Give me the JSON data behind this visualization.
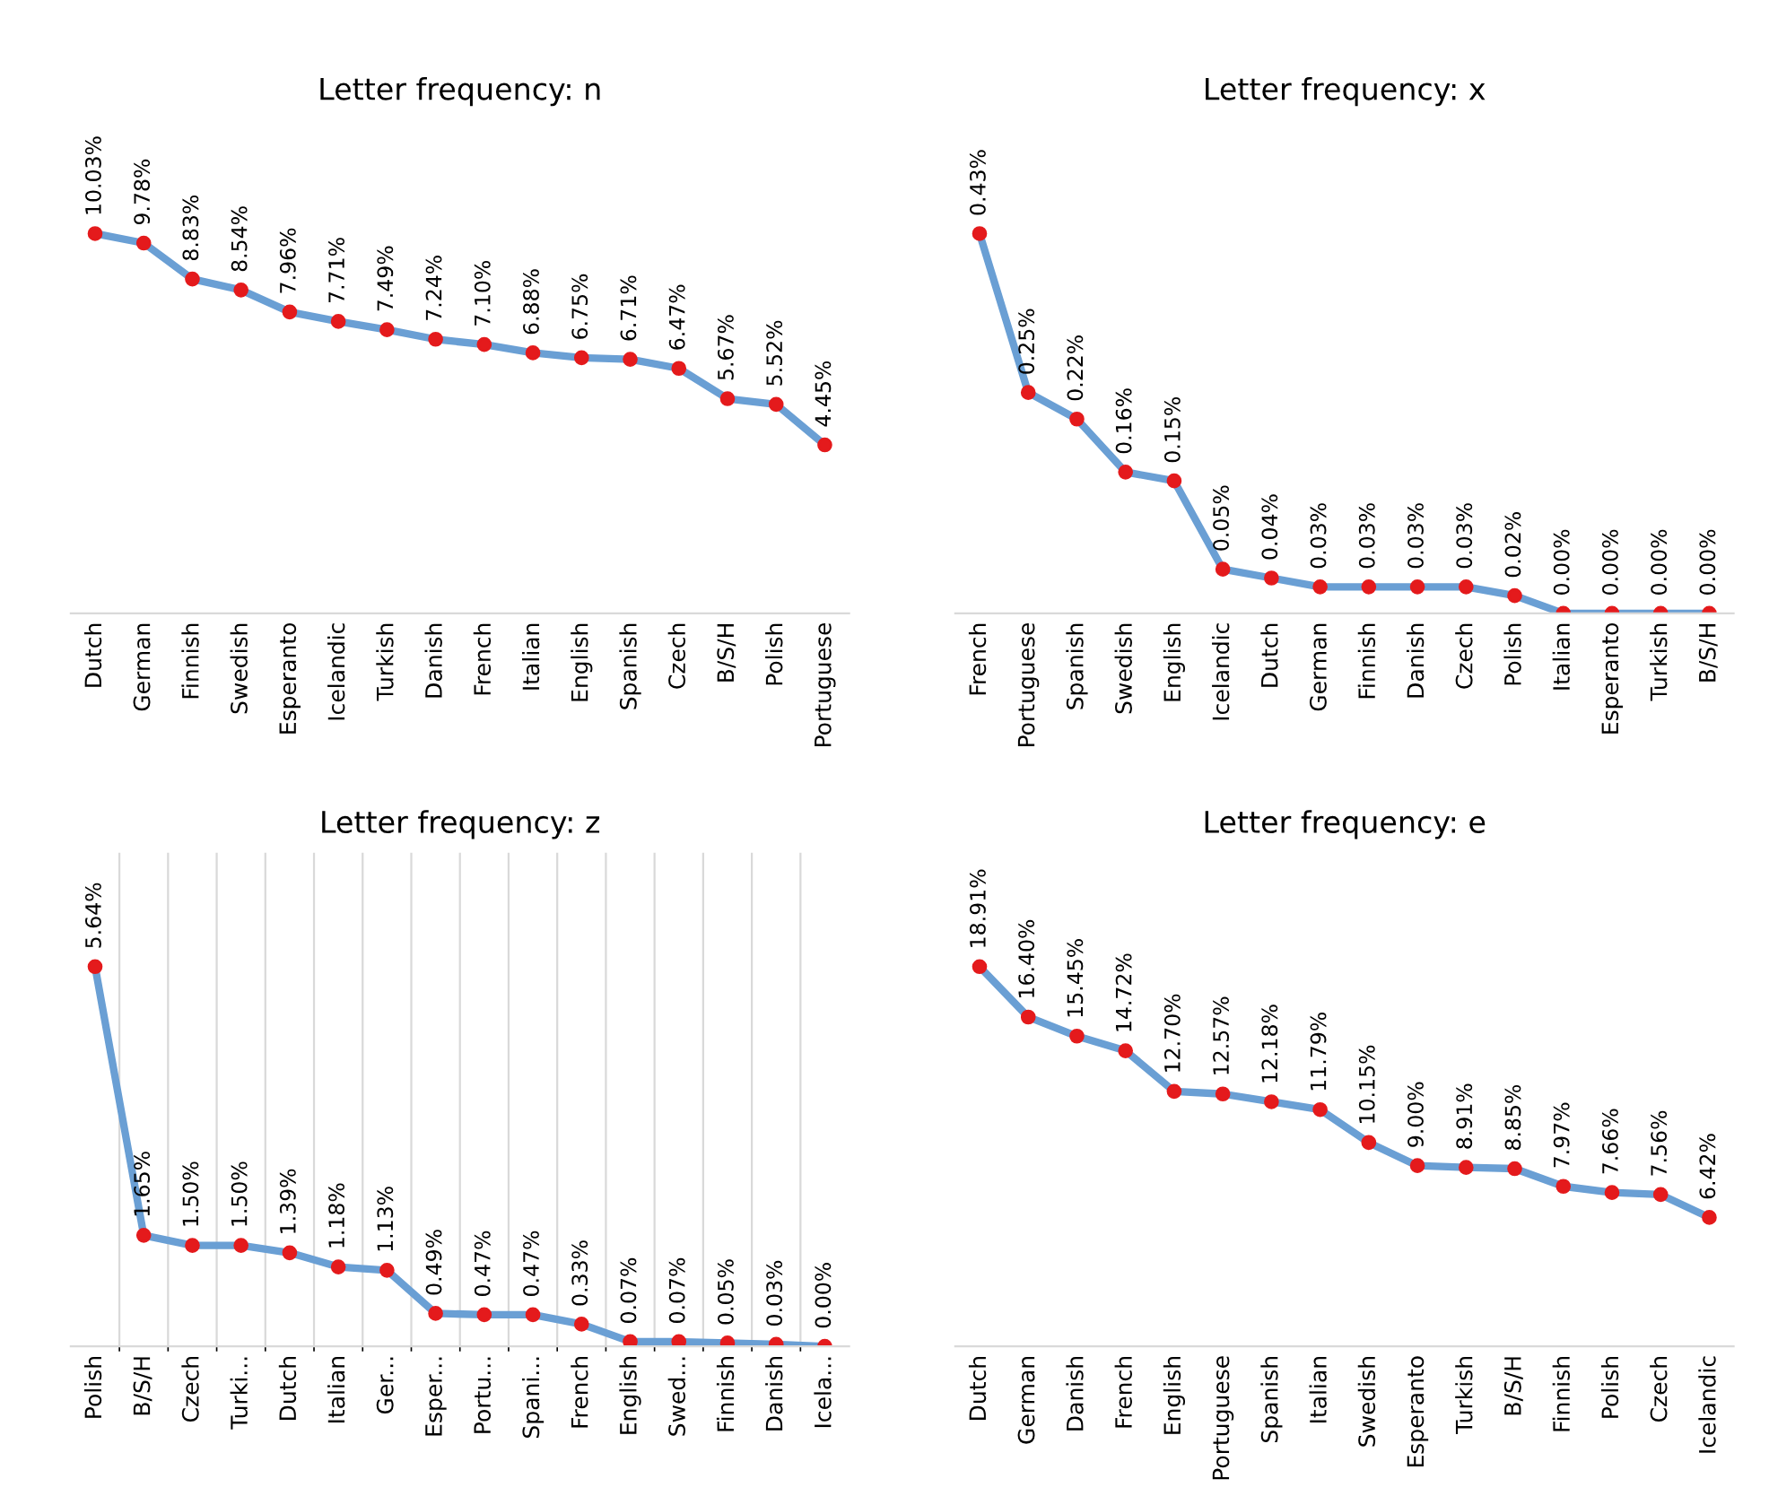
{
  "chart_data": [
    {
      "type": "line",
      "title": "Letter frequency: n",
      "categories": [
        "Dutch",
        "German",
        "Finnish",
        "Swedish",
        "Esperanto",
        "Icelandic",
        "Turkish",
        "Danish",
        "French",
        "Italian",
        "English",
        "Spanish",
        "Czech",
        "B/S/H",
        "Polish",
        "Portuguese"
      ],
      "series": [
        {
          "color": "#6a9fd4",
          "values": [
            10.03,
            9.78,
            8.83,
            8.54,
            7.96,
            7.71,
            7.49,
            7.24,
            7.1,
            6.88,
            6.75,
            6.71,
            6.47,
            5.67,
            5.52,
            4.45
          ],
          "value_labels": [
            "10.03%",
            "9.78%",
            "8.83%",
            "8.54%",
            "7.96%",
            "7.71%",
            "7.49%",
            "7.24%",
            "7.10%",
            "6.88%",
            "6.75%",
            "6.71%",
            "6.47%",
            "5.67%",
            "5.52%",
            "4.45%"
          ]
        }
      ],
      "marker": "circle",
      "grid": false,
      "tick_labels": "x"
    },
    {
      "type": "line",
      "title": "Letter frequency: x",
      "categories": [
        "French",
        "Portuguese",
        "Spanish",
        "Swedish",
        "English",
        "Icelandic",
        "Dutch",
        "German",
        "Finnish",
        "Danish",
        "Czech",
        "Polish",
        "Italian",
        "Esperanto",
        "Turkish",
        "B/S/H"
      ],
      "series": [
        {
          "color": "#6a9fd4",
          "values": [
            0.43,
            0.25,
            0.22,
            0.16,
            0.15,
            0.05,
            0.04,
            0.03,
            0.03,
            0.03,
            0.03,
            0.02,
            0.0,
            0.0,
            0.0,
            0.0
          ],
          "value_labels": [
            "0.43%",
            "0.25%",
            "0.22%",
            "0.16%",
            "0.15%",
            "0.05%",
            "0.04%",
            "0.03%",
            "0.03%",
            "0.03%",
            "0.03%",
            "0.02%",
            "0.00%",
            "0.00%",
            "0.00%",
            "0.00%"
          ]
        }
      ],
      "marker": "circle",
      "grid": false,
      "tick_labels": "x"
    },
    {
      "type": "line",
      "title": "Letter frequency: z",
      "categories": [
        "Polish",
        "B/S/H",
        "Czech",
        "Turki...",
        "Dutch",
        "Italian",
        "Ger...",
        "Esper...",
        "Portu...",
        "Spani...",
        "French",
        "English",
        "Swed...",
        "Finnish",
        "Danish",
        "Icela..."
      ],
      "series": [
        {
          "color": "#6a9fd4",
          "values": [
            5.64,
            1.65,
            1.5,
            1.5,
            1.39,
            1.18,
            1.13,
            0.49,
            0.47,
            0.47,
            0.33,
            0.07,
            0.07,
            0.05,
            0.03,
            0.0
          ],
          "value_labels": [
            "5.64%",
            "1.65%",
            "1.50%",
            "1.50%",
            "1.39%",
            "1.18%",
            "1.13%",
            "0.49%",
            "0.47%",
            "0.47%",
            "0.33%",
            "0.07%",
            "0.07%",
            "0.05%",
            "0.03%",
            "0.00%"
          ]
        }
      ],
      "marker": "circle",
      "grid": "x",
      "tick_labels": "x"
    },
    {
      "type": "line",
      "title": "Letter frequency: e",
      "categories": [
        "Dutch",
        "German",
        "Danish",
        "French",
        "English",
        "Portuguese",
        "Spanish",
        "Italian",
        "Swedish",
        "Esperanto",
        "Turkish",
        "B/S/H",
        "Finnish",
        "Polish",
        "Czech",
        "Icelandic"
      ],
      "series": [
        {
          "color": "#6a9fd4",
          "values": [
            18.91,
            16.4,
            15.45,
            14.72,
            12.7,
            12.57,
            12.18,
            11.79,
            10.15,
            9.0,
            8.91,
            8.85,
            7.97,
            7.66,
            7.56,
            6.42
          ],
          "value_labels": [
            "18.91%",
            "16.40%",
            "15.45%",
            "14.72%",
            "12.70%",
            "12.57%",
            "12.18%",
            "11.79%",
            "10.15%",
            "9.00%",
            "8.91%",
            "8.85%",
            "7.97%",
            "7.66%",
            "7.56%",
            "6.42%"
          ]
        }
      ],
      "marker": "circle",
      "grid": false,
      "tick_labels": "x"
    }
  ]
}
